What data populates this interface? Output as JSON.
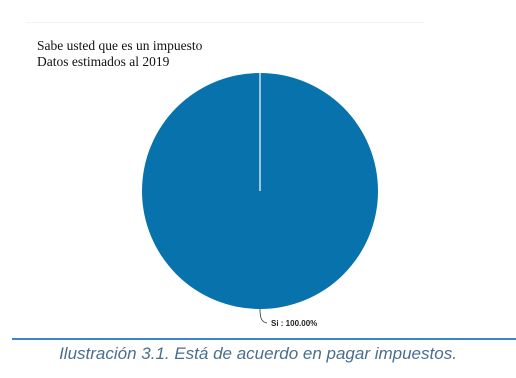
{
  "chart_data": {
    "type": "pie",
    "title": "Sabe usted que es un impuesto",
    "subtitle": "Datos estimados al 2019",
    "slices": [
      {
        "label": "Si",
        "value": 100.0,
        "percent_label": "Si : 100.00%",
        "color": "#0872ad"
      }
    ],
    "slice_border_color": "#ffffff"
  },
  "caption": "Ilustración 3.1. Está de acuerdo en pagar impuestos.",
  "colors": {
    "caption_text": "#4a6e8f",
    "caption_rule": "#3a86c8"
  }
}
